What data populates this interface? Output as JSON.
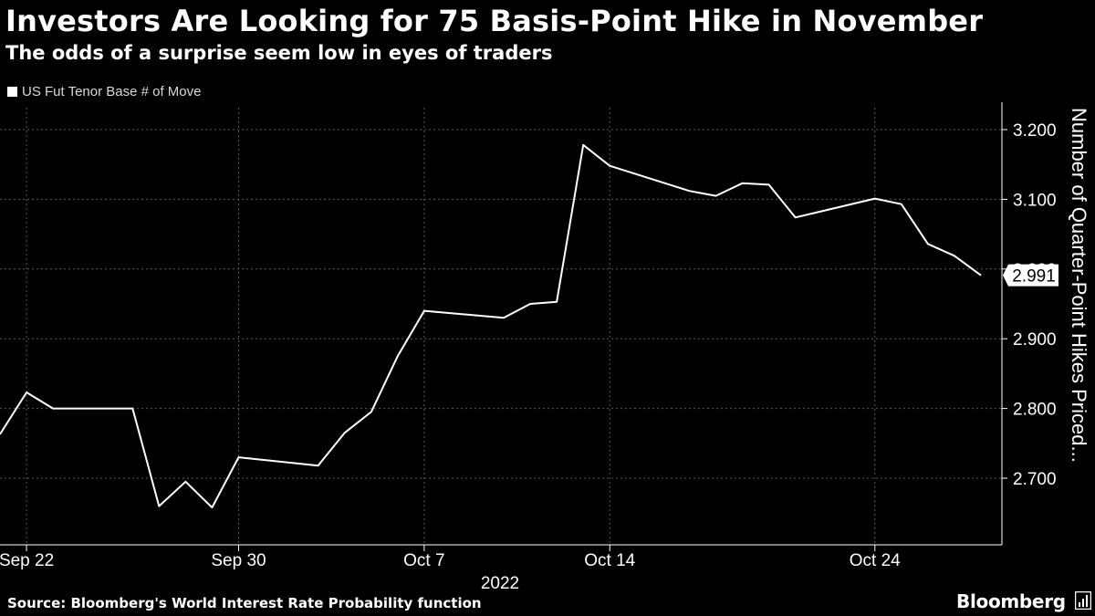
{
  "title": "Investors Are Looking for 75 Basis-Point Hike in November",
  "subtitle": "The odds of a surprise seem low in eyes of traders",
  "source": "Source: Bloomberg's World Interest Rate Probability function",
  "brand": "Bloomberg",
  "brand_icon": "bloomberg-terminal-icon",
  "colors": {
    "background": "#000000",
    "line": "#ffffff",
    "grid": "#555555",
    "text": "#ffffff"
  },
  "chart_data": {
    "type": "line",
    "title": "Investors Are Looking for 75 Basis-Point Hike in November",
    "subtitle": "The odds of a surprise seem low in eyes of traders",
    "ylabel": "Number of Quarter-Point Hikes Priced...",
    "year_label": "2022",
    "legend": [
      "US Fut Tenor Base # of Move"
    ],
    "legend_position": "top-left",
    "grid": true,
    "y_axis_side": "right",
    "ylim": [
      2.63,
      3.26
    ],
    "yticks": [
      2.7,
      2.8,
      2.9,
      3.0,
      3.1,
      3.2
    ],
    "ytick_labels": [
      "2.700",
      "2.800",
      "2.900",
      "3.000",
      "3.100",
      "3.200"
    ],
    "xticks": [
      {
        "date": "2022-09-22",
        "label": "Sep 22"
      },
      {
        "date": "2022-09-30",
        "label": "Sep 30"
      },
      {
        "date": "2022-10-07",
        "label": "Oct 7"
      },
      {
        "date": "2022-10-14",
        "label": "Oct 14"
      },
      {
        "date": "2022-10-24",
        "label": "Oct 24"
      }
    ],
    "last_value_label": "2.991",
    "series": [
      {
        "name": "US Fut Tenor Base # of Move",
        "x": [
          "2022-09-21",
          "2022-09-22",
          "2022-09-23",
          "2022-09-26",
          "2022-09-27",
          "2022-09-28",
          "2022-09-29",
          "2022-09-30",
          "2022-10-03",
          "2022-10-04",
          "2022-10-05",
          "2022-10-06",
          "2022-10-07",
          "2022-10-10",
          "2022-10-11",
          "2022-10-12",
          "2022-10-13",
          "2022-10-14",
          "2022-10-17",
          "2022-10-18",
          "2022-10-19",
          "2022-10-20",
          "2022-10-21",
          "2022-10-24",
          "2022-10-25",
          "2022-10-26",
          "2022-10-27",
          "2022-10-28"
        ],
        "values": [
          2.763,
          2.823,
          2.8,
          2.8,
          2.66,
          2.695,
          2.658,
          2.73,
          2.718,
          2.765,
          2.795,
          2.875,
          2.94,
          2.93,
          2.95,
          2.953,
          3.178,
          3.148,
          3.112,
          3.105,
          3.123,
          3.121,
          3.074,
          3.101,
          3.093,
          3.036,
          3.019,
          2.991
        ]
      }
    ]
  }
}
